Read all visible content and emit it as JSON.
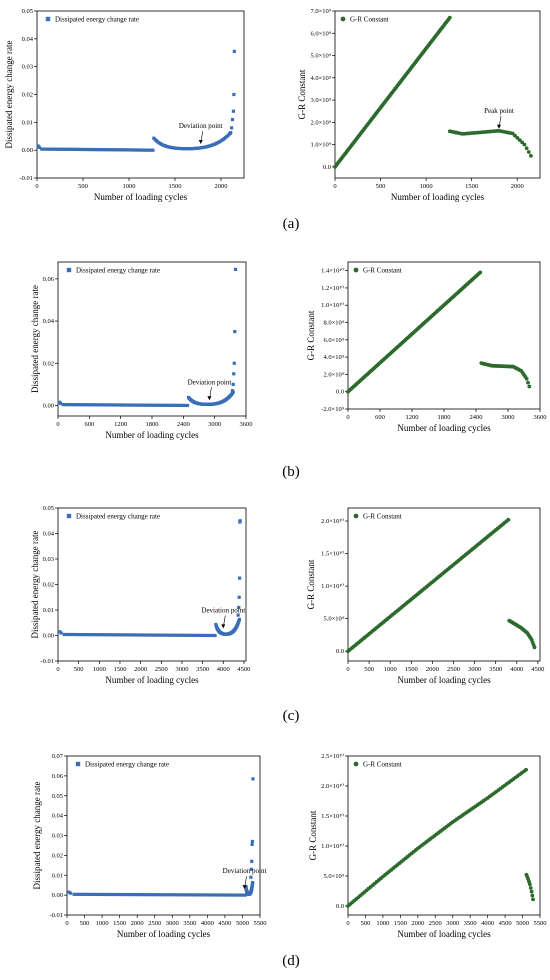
{
  "panel_labels": [
    "(a)",
    "(b)",
    "(c)",
    "(d)"
  ],
  "chart_data": [
    {
      "type": "scatter",
      "xlabel": "Number of loading cycles",
      "ylabel": "Dissipated energy change rate",
      "xlim": [
        0,
        2250
      ],
      "ylim": [
        -0.01,
        0.05
      ],
      "xticks": [
        "0",
        "500",
        "1000",
        "1500",
        "2000"
      ],
      "xtickvals": [
        0,
        500,
        1000,
        1500,
        2000
      ],
      "yticks": [
        "-0.01",
        "0.00",
        "0.01",
        "0.02",
        "0.03",
        "0.04",
        "0.05"
      ],
      "ytickvals": [
        -0.01,
        0,
        0.01,
        0.02,
        0.03,
        0.04,
        0.05
      ],
      "legend": "Dissipated energy change rate",
      "color": "#3a6fb7",
      "annotation": {
        "text": "Deviation point",
        "x": 1780,
        "y": 0.0015
      },
      "series_shape": {
        "x_end1": 1260,
        "x_start2": 1270,
        "x_end2": 2150,
        "y_jump": 0.004
      },
      "points_high": [
        [
          2100,
          0.006
        ],
        [
          2115,
          0.008
        ],
        [
          2125,
          0.011
        ],
        [
          2135,
          0.014
        ],
        [
          2140,
          0.02
        ],
        [
          2145,
          0.0355
        ]
      ]
    },
    {
      "type": "scatter",
      "xlabel": "Number of loading cycles",
      "ylabel": "G-R Constant",
      "xlim": [
        0,
        2250
      ],
      "ylim": [
        -500000000.0,
        7000000000.0
      ],
      "xticks": [
        "0",
        "500",
        "1000",
        "1500",
        "2000"
      ],
      "xtickvals": [
        0,
        500,
        1000,
        1500,
        2000
      ],
      "yticks": [
        "0.0",
        "1.0×10⁹",
        "2.0×10⁹",
        "3.0×10⁹",
        "4.0×10⁹",
        "5.0×10⁹",
        "6.0×10⁹",
        "7.0×10⁹"
      ],
      "ytickvals": [
        0,
        1000000000.0,
        2000000000.0,
        3000000000.0,
        4000000000.0,
        5000000000.0,
        6000000000.0,
        7000000000.0
      ],
      "legend": "G-R Constant",
      "color": "#2d6a2d",
      "annotation": {
        "text": "Peak point",
        "x": 1800,
        "y": 1620000000.0
      },
      "line1": [
        [
          0,
          0
        ],
        [
          1260,
          6700000000.0
        ]
      ],
      "curve2": [
        [
          1260,
          1600000000.0
        ],
        [
          1400,
          1480000000.0
        ],
        [
          1600,
          1550000000.0
        ],
        [
          1800,
          1620000000.0
        ],
        [
          1950,
          1500000000.0
        ],
        [
          2080,
          1000000000.0
        ],
        [
          2150,
          500000000.0
        ]
      ]
    },
    {
      "type": "scatter",
      "xlabel": "Number of loading cycles",
      "ylabel": "Dissipated energy change rate",
      "xlim": [
        0,
        3600
      ],
      "ylim": [
        -0.005,
        0.068
      ],
      "xticks": [
        "0",
        "600",
        "1200",
        "1800",
        "2400",
        "3000",
        "3600"
      ],
      "xtickvals": [
        0,
        600,
        1200,
        1800,
        2400,
        3000,
        3600
      ],
      "yticks": [
        "0.00",
        "0.02",
        "0.04",
        "0.06"
      ],
      "ytickvals": [
        0,
        0.02,
        0.04,
        0.06
      ],
      "legend": "Dissipated energy change rate",
      "color": "#3a6fb7",
      "annotation": {
        "text": "Deviation point",
        "x": 2900,
        "y": 0.0015
      },
      "series_shape": {
        "x_end1": 2480,
        "x_start2": 2500,
        "x_end2": 3400,
        "y_jump": 0.0035
      },
      "points_high": [
        [
          3340,
          0.007
        ],
        [
          3355,
          0.01
        ],
        [
          3365,
          0.015
        ],
        [
          3375,
          0.02
        ],
        [
          3385,
          0.035
        ],
        [
          3400,
          0.0645
        ]
      ]
    },
    {
      "type": "scatter",
      "xlabel": "Number of loading cycles",
      "ylabel": "G-R Constant",
      "xlim": [
        0,
        3600
      ],
      "ylim": [
        -2000000000.0,
        15000000000.0
      ],
      "xticks": [
        "0",
        "600",
        "1200",
        "1800",
        "2400",
        "3000",
        "3600"
      ],
      "xtickvals": [
        0,
        600,
        1200,
        1800,
        2400,
        3000,
        3600
      ],
      "yticks": [
        "-2.0×10⁹",
        "0.0",
        "2.0×10⁹",
        "4.0×10⁹",
        "6.0×10⁹",
        "8.0×10⁹",
        "1.0×10¹⁰",
        "1.2×10¹⁰",
        "1.4×10¹⁰"
      ],
      "ytickvals": [
        -2000000000.0,
        0,
        2000000000.0,
        4000000000.0,
        6000000000.0,
        8000000000.0,
        10000000000.0,
        12000000000.0,
        14000000000.0
      ],
      "legend": "G-R Constant",
      "color": "#2d6a2d",
      "line1": [
        [
          0,
          0
        ],
        [
          2480,
          13800000000.0
        ]
      ],
      "curve2": [
        [
          2500,
          3300000000.0
        ],
        [
          2700,
          3000000000.0
        ],
        [
          2900,
          2950000000.0
        ],
        [
          3100,
          2900000000.0
        ],
        [
          3250,
          2400000000.0
        ],
        [
          3350,
          1500000000.0
        ],
        [
          3400,
          600000000.0
        ]
      ]
    },
    {
      "type": "scatter",
      "xlabel": "Number of loading cycles",
      "ylabel": "Dissipated energy change rate",
      "xlim": [
        0,
        4550
      ],
      "ylim": [
        -0.01,
        0.05
      ],
      "xticks": [
        "0",
        "500",
        "1000",
        "1500",
        "2000",
        "2500",
        "3000",
        "3500",
        "4000",
        "4500"
      ],
      "xtickvals": [
        0,
        500,
        1000,
        1500,
        2000,
        2500,
        3000,
        3500,
        4000,
        4500
      ],
      "yticks": [
        "-0.01",
        "0.00",
        "0.01",
        "0.02",
        "0.03",
        "0.04",
        "0.05"
      ],
      "ytickvals": [
        -0.01,
        0,
        0.01,
        0.02,
        0.03,
        0.04,
        0.05
      ],
      "legend": "Dissipated energy change rate",
      "color": "#3a6fb7",
      "annotation": {
        "text": "Deviation point",
        "x": 4000,
        "y": 0.002
      },
      "series_shape": {
        "x_end1": 3800,
        "x_start2": 3820,
        "x_end2": 4420,
        "y_jump": 0.004
      },
      "points_high": [
        [
          4360,
          0.008
        ],
        [
          4375,
          0.011
        ],
        [
          4385,
          0.015
        ],
        [
          4395,
          0.0225
        ],
        [
          4400,
          0.0445
        ],
        [
          4410,
          0.045
        ]
      ]
    },
    {
      "type": "scatter",
      "xlabel": "Number of loading cycles",
      "ylabel": "G-R Constant",
      "xlim": [
        0,
        4550
      ],
      "ylim": [
        -1500000000.0,
        22000000000.0
      ],
      "xticks": [
        "0",
        "500",
        "1000",
        "1500",
        "2000",
        "2500",
        "3000",
        "3500",
        "4000",
        "4500"
      ],
      "xtickvals": [
        0,
        500,
        1000,
        1500,
        2000,
        2500,
        3000,
        3500,
        4000,
        4500
      ],
      "yticks": [
        "0.0",
        "5.0×10⁹",
        "1.0×10¹⁰",
        "1.5×10¹⁰",
        "2.0×10¹⁰"
      ],
      "ytickvals": [
        0,
        5000000000.0,
        10000000000.0,
        15000000000.0,
        20000000000.0
      ],
      "legend": "G-R Constant",
      "color": "#2d6a2d",
      "line1": [
        [
          0,
          0
        ],
        [
          3800,
          20200000000.0
        ]
      ],
      "curve2": [
        [
          3820,
          4700000000.0
        ],
        [
          3950,
          4200000000.0
        ],
        [
          4100,
          3600000000.0
        ],
        [
          4250,
          2800000000.0
        ],
        [
          4350,
          1800000000.0
        ],
        [
          4420,
          600000000.0
        ]
      ]
    },
    {
      "type": "scatter",
      "xlabel": "Number of loading cycles",
      "ylabel": "Dissipated energy change rate",
      "xlim": [
        0,
        5500
      ],
      "ylim": [
        -0.01,
        0.07
      ],
      "xticks": [
        "0",
        "500",
        "1000",
        "1500",
        "2000",
        "2500",
        "3000",
        "3500",
        "4000",
        "4500",
        "5000",
        "5500"
      ],
      "xtickvals": [
        0,
        500,
        1000,
        1500,
        2000,
        2500,
        3000,
        3500,
        4000,
        4500,
        5000,
        5500
      ],
      "yticks": [
        "-0.01",
        "0.00",
        "0.01",
        "0.02",
        "0.03",
        "0.04",
        "0.05",
        "0.06",
        "0.07"
      ],
      "ytickvals": [
        -0.01,
        0,
        0.01,
        0.02,
        0.03,
        0.04,
        0.05,
        0.06,
        0.07
      ],
      "legend": "Dissipated energy change rate",
      "color": "#3a6fb7",
      "annotation": {
        "text": "Deviation point",
        "x": 5060,
        "y": 0.002
      },
      "series_shape": {
        "x_end1": 5080,
        "x_start2": 5100,
        "x_end2": 5300,
        "y_jump": 0.004
      },
      "points_high": [
        [
          5240,
          0.009
        ],
        [
          5255,
          0.013
        ],
        [
          5265,
          0.017
        ],
        [
          5275,
          0.0255
        ],
        [
          5285,
          0.027
        ],
        [
          5300,
          0.0585
        ]
      ]
    },
    {
      "type": "scatter",
      "xlabel": "Number of loading cycles",
      "ylabel": "G-R Constant",
      "xlim": [
        0,
        5500
      ],
      "ylim": [
        -1500000000.0,
        25000000000.0
      ],
      "xticks": [
        "0",
        "500",
        "1000",
        "1500",
        "2000",
        "2500",
        "3000",
        "3500",
        "4000",
        "4500",
        "5000",
        "5500"
      ],
      "xtickvals": [
        0,
        500,
        1000,
        1500,
        2000,
        2500,
        3000,
        3500,
        4000,
        4500,
        5000,
        5500
      ],
      "yticks": [
        "0.0",
        "5.0×10⁹",
        "1.0×10¹⁰",
        "1.5×10¹⁰",
        "2.0×10¹⁰",
        "2.5×10¹⁰"
      ],
      "ytickvals": [
        0,
        5000000000.0,
        10000000000.0,
        15000000000.0,
        20000000000.0,
        25000000000.0
      ],
      "legend": "G-R Constant",
      "color": "#2d6a2d",
      "line1curve": [
        [
          0,
          0
        ],
        [
          1000,
          4900000000.0
        ],
        [
          2000,
          9600000000.0
        ],
        [
          3000,
          14000000000.0
        ],
        [
          4000,
          18000000000.0
        ],
        [
          5100,
          22700000000.0
        ]
      ],
      "curve2": [
        [
          5110,
          5200000000.0
        ],
        [
          5160,
          4500000000.0
        ],
        [
          5210,
          3600000000.0
        ],
        [
          5260,
          2400000000.0
        ],
        [
          5300,
          1100000000.0
        ]
      ]
    }
  ]
}
